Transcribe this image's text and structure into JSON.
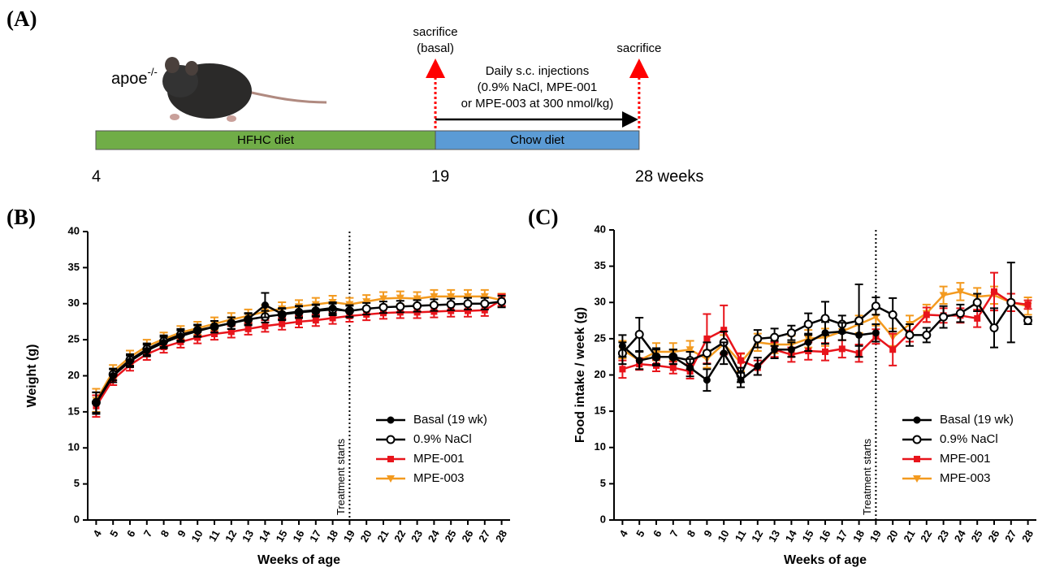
{
  "panel_a": {
    "label": "(A)",
    "strain": "apoe",
    "strain_superscript": "-/-",
    "ticks": [
      4,
      19,
      {
        "value": 28,
        "label": "28 weeks"
      }
    ],
    "segments": [
      {
        "label": "HFHC diet",
        "start": 4,
        "end": 19,
        "color": "#70ad47"
      },
      {
        "label": "Chow diet",
        "start": 19,
        "end": 28,
        "color": "#5b9bd5"
      }
    ],
    "sacrifices": [
      {
        "at": 19,
        "lines": [
          "sacrifice",
          "(basal)"
        ]
      },
      {
        "at": 28,
        "lines": [
          "sacrifice"
        ]
      }
    ],
    "injections": {
      "start": 19,
      "end": 28,
      "lines": [
        "Daily s.c. injections",
        "(0.9% NaCl, MPE-001",
        "or MPE-003 at 300 nmol/kg)"
      ]
    }
  },
  "chart_data": [
    {
      "type": "line",
      "panel_label": "(B)",
      "x_label": "Weeks of age",
      "y_label": "Weight (g)",
      "x": [
        4,
        5,
        6,
        7,
        8,
        9,
        10,
        11,
        12,
        13,
        14,
        15,
        16,
        17,
        18,
        19,
        20,
        21,
        22,
        23,
        24,
        25,
        26,
        27,
        28
      ],
      "xlim": [
        3.5,
        28.5
      ],
      "xticks": [
        4,
        5,
        6,
        7,
        8,
        9,
        10,
        11,
        12,
        13,
        14,
        15,
        16,
        17,
        18,
        19,
        20,
        21,
        22,
        23,
        24,
        25,
        26,
        27,
        28
      ],
      "ylim": [
        0,
        40
      ],
      "yticks": [
        0,
        5,
        10,
        15,
        20,
        25,
        30,
        35,
        40
      ],
      "grid": false,
      "legend": "lower right",
      "annotation": {
        "x": 19,
        "text": "Treatment starts"
      },
      "series": [
        {
          "name": "Basal (19 wk)",
          "color": "#000000",
          "marker": "filled-circle",
          "values": [
            16.2,
            20.0,
            22.0,
            23.5,
            24.6,
            25.5,
            26.2,
            26.8,
            27.3,
            27.9,
            29.8,
            28.6,
            28.9,
            29.1,
            29.4,
            28.9,
            null,
            null,
            null,
            null,
            null,
            null,
            null,
            null,
            null
          ],
          "errors": [
            1.5,
            0.9,
            0.8,
            0.8,
            0.8,
            0.8,
            0.8,
            0.8,
            0.8,
            0.8,
            1.7,
            0.8,
            0.8,
            0.8,
            0.8,
            0.8,
            null,
            null,
            null,
            null,
            null,
            null,
            null,
            null,
            null
          ]
        },
        {
          "name": "0.9% NaCl",
          "color": "#000000",
          "marker": "open-circle",
          "values": [
            16.3,
            20.2,
            22.2,
            23.7,
            24.8,
            25.7,
            26.3,
            26.8,
            27.3,
            27.8,
            28.2,
            28.5,
            28.8,
            29.0,
            29.2,
            29.0,
            29.3,
            29.5,
            29.6,
            29.7,
            29.8,
            29.9,
            30.0,
            30.0,
            30.3
          ],
          "errors": [
            1.4,
            0.8,
            0.8,
            0.8,
            0.8,
            0.8,
            0.8,
            0.8,
            0.8,
            0.8,
            0.8,
            0.8,
            0.8,
            0.8,
            0.8,
            0.8,
            0.8,
            0.8,
            0.8,
            0.8,
            0.8,
            0.8,
            0.8,
            0.8,
            0.8
          ]
        },
        {
          "name": "MPE-001",
          "color": "#e8141b",
          "marker": "square",
          "values": [
            15.8,
            19.5,
            21.5,
            23.0,
            24.0,
            24.7,
            25.3,
            25.8,
            26.1,
            26.5,
            26.9,
            27.2,
            27.5,
            27.7,
            28.0,
            28.3,
            28.5,
            28.7,
            28.8,
            28.8,
            28.9,
            29.0,
            29.0,
            29.1,
            30.5
          ],
          "errors": [
            1.5,
            0.8,
            0.8,
            0.8,
            0.8,
            0.8,
            0.8,
            0.8,
            0.8,
            0.8,
            0.8,
            0.8,
            0.8,
            0.8,
            0.8,
            0.8,
            0.8,
            0.8,
            0.8,
            0.8,
            0.8,
            0.8,
            0.8,
            0.8,
            0.8
          ]
        },
        {
          "name": "MPE-003",
          "color": "#f39a1f",
          "marker": "triangle-down",
          "values": [
            16.6,
            20.6,
            22.6,
            24.1,
            25.1,
            26.0,
            26.6,
            27.2,
            27.8,
            28.3,
            28.9,
            29.3,
            29.6,
            29.9,
            30.2,
            29.9,
            30.3,
            30.7,
            30.8,
            30.7,
            31.0,
            31.0,
            31.0,
            31.0,
            30.5
          ],
          "errors": [
            1.6,
            0.9,
            0.9,
            0.9,
            0.9,
            0.9,
            0.9,
            0.9,
            0.9,
            0.9,
            0.9,
            0.9,
            0.9,
            0.9,
            0.9,
            0.9,
            0.9,
            0.9,
            0.9,
            0.9,
            0.9,
            0.9,
            0.9,
            0.9,
            0.9
          ]
        }
      ]
    },
    {
      "type": "line",
      "panel_label": "(C)",
      "x_label": "Weeks of age",
      "y_label": "Food intake / week (g)",
      "x": [
        4,
        5,
        6,
        7,
        8,
        9,
        10,
        11,
        12,
        13,
        14,
        15,
        16,
        17,
        18,
        19,
        20,
        21,
        22,
        23,
        24,
        25,
        26,
        27,
        28
      ],
      "xlim": [
        3.5,
        28.5
      ],
      "xticks": [
        4,
        5,
        6,
        7,
        8,
        9,
        10,
        11,
        12,
        13,
        14,
        15,
        16,
        17,
        18,
        19,
        20,
        21,
        22,
        23,
        24,
        25,
        26,
        27,
        28
      ],
      "ylim": [
        0,
        40
      ],
      "yticks": [
        0,
        5,
        10,
        15,
        20,
        25,
        30,
        35,
        40
      ],
      "grid": false,
      "legend": "lower right",
      "annotation": {
        "x": 19,
        "text": "Treatment starts"
      },
      "series": [
        {
          "name": "Basal (19 wk)",
          "color": "#000000",
          "marker": "filled-circle",
          "values": [
            24.0,
            22.0,
            22.5,
            22.5,
            21.0,
            19.3,
            23.0,
            19.3,
            21.2,
            23.5,
            23.5,
            24.5,
            25.8,
            26.0,
            25.5,
            25.8,
            null,
            null,
            null,
            null,
            null,
            null,
            null,
            null,
            null
          ],
          "errors": [
            1.5,
            1.2,
            1.2,
            1.0,
            1.2,
            1.5,
            1.5,
            1.0,
            1.2,
            1.2,
            1.0,
            1.2,
            1.5,
            1.2,
            1.5,
            1.2,
            null,
            null,
            null,
            null,
            null,
            null,
            null,
            null,
            null
          ]
        },
        {
          "name": "0.9% NaCl",
          "color": "#000000",
          "marker": "open-circle",
          "values": [
            23.0,
            25.6,
            22.5,
            22.5,
            22.0,
            23.0,
            24.5,
            20.0,
            25.0,
            25.2,
            25.8,
            27.0,
            27.8,
            27.0,
            27.5,
            29.5,
            28.3,
            25.5,
            25.5,
            28.0,
            28.5,
            30.0,
            26.5,
            30.0,
            27.5
          ],
          "errors": [
            1.5,
            2.3,
            1.0,
            1.0,
            1.2,
            1.5,
            1.5,
            1.0,
            1.2,
            1.2,
            1.0,
            1.5,
            2.3,
            1.2,
            5.0,
            1.2,
            2.3,
            1.5,
            1.0,
            1.5,
            1.2,
            1.2,
            2.7,
            5.5,
            0.5
          ]
        },
        {
          "name": "MPE-001",
          "color": "#e8141b",
          "marker": "square",
          "values": [
            20.8,
            21.5,
            21.3,
            21.0,
            20.5,
            25.0,
            26.2,
            22.0,
            21.0,
            23.5,
            22.8,
            23.3,
            23.2,
            23.6,
            23.0,
            25.3,
            23.5,
            25.8,
            28.3,
            28.2,
            28.2,
            27.8,
            31.5,
            30.0,
            29.7
          ],
          "errors": [
            1.2,
            0.8,
            0.8,
            0.8,
            1.0,
            3.4,
            3.4,
            1.0,
            1.0,
            1.0,
            1.0,
            1.2,
            1.2,
            1.2,
            1.2,
            1.0,
            2.2,
            1.2,
            1.0,
            1.0,
            1.0,
            1.2,
            2.6,
            1.2,
            0.6
          ]
        },
        {
          "name": "MPE-003",
          "color": "#f39a1f",
          "marker": "triangle-down",
          "values": [
            23.5,
            22.0,
            23.2,
            23.2,
            23.5,
            22.2,
            24.3,
            21.7,
            24.5,
            24.2,
            24.2,
            25.0,
            25.2,
            26.0,
            27.0,
            28.0,
            25.2,
            27.0,
            28.5,
            31.0,
            31.5,
            30.8,
            31.0,
            30.0,
            29.5
          ],
          "errors": [
            1.2,
            1.2,
            1.2,
            1.2,
            1.2,
            1.2,
            1.2,
            1.2,
            1.2,
            1.2,
            1.2,
            1.2,
            1.2,
            1.2,
            1.2,
            1.2,
            1.2,
            1.2,
            1.2,
            1.2,
            1.2,
            1.2,
            1.2,
            1.2,
            1.2
          ]
        }
      ]
    }
  ]
}
